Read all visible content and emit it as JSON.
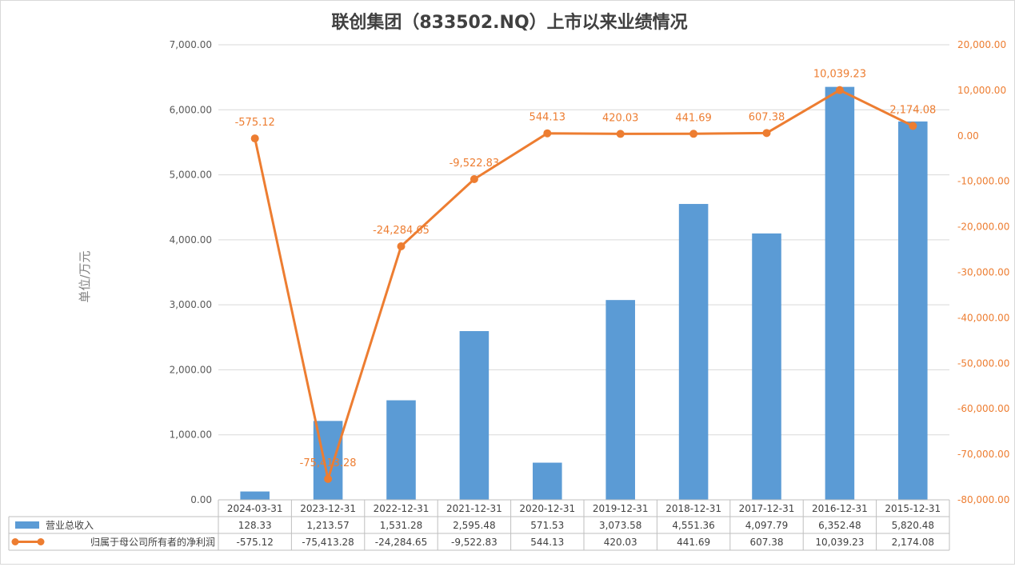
{
  "chart_data": {
    "type": "bar",
    "title": "联创集团（833502.NQ）上市以来业绩情况",
    "ylabel": "单位/万元",
    "categories": [
      "2024-03-31",
      "2023-12-31",
      "2022-12-31",
      "2021-12-31",
      "2020-12-31",
      "2019-12-31",
      "2018-12-31",
      "2017-12-31",
      "2016-12-31",
      "2015-12-31"
    ],
    "series": [
      {
        "name": "营业总收入",
        "type": "bar",
        "axis": "left",
        "color": "#5b9bd5",
        "values": [
          128.33,
          1213.57,
          1531.28,
          2595.48,
          571.53,
          3073.58,
          4551.36,
          4097.79,
          6352.48,
          5820.48
        ],
        "table_labels": [
          "128.33",
          "1,213.57",
          "1,531.28",
          "2,595.48",
          "571.53",
          "3,073.58",
          "4,551.36",
          "4,097.79",
          "6,352.48",
          "5,820.48"
        ]
      },
      {
        "name": "归属于母公司所有者的净利润",
        "type": "line",
        "axis": "right",
        "color": "#ed7d31",
        "values": [
          -575.12,
          -75413.28,
          -24284.65,
          -9522.83,
          544.13,
          420.03,
          441.69,
          607.38,
          10039.23,
          2174.08
        ],
        "data_labels": [
          "-575.12",
          "-75,413.28",
          "-24,284.65",
          "-9,522.83",
          "544.13",
          "420.03",
          "441.69",
          "607.38",
          "10,039.23",
          "2,174.08"
        ],
        "table_labels": [
          "-575.12",
          "-75,413.28",
          "-24,284.65",
          "-9,522.83",
          "544.13",
          "420.03",
          "441.69",
          "607.38",
          "10,039.23",
          "2,174.08"
        ]
      }
    ],
    "ylim_left": [
      0,
      7000
    ],
    "ylim_right": [
      -80000,
      20000
    ],
    "left_ticks": [
      "0.00",
      "1,000.00",
      "2,000.00",
      "3,000.00",
      "4,000.00",
      "5,000.00",
      "6,000.00",
      "7,000.00"
    ],
    "right_ticks": [
      "-80,000.00",
      "-70,000.00",
      "-60,000.00",
      "-50,000.00",
      "-40,000.00",
      "-30,000.00",
      "-20,000.00",
      "-10,000.00",
      "0.00",
      "10,000.00",
      "20,000.00"
    ],
    "grid": true,
    "legend": "data-table-bottom"
  }
}
